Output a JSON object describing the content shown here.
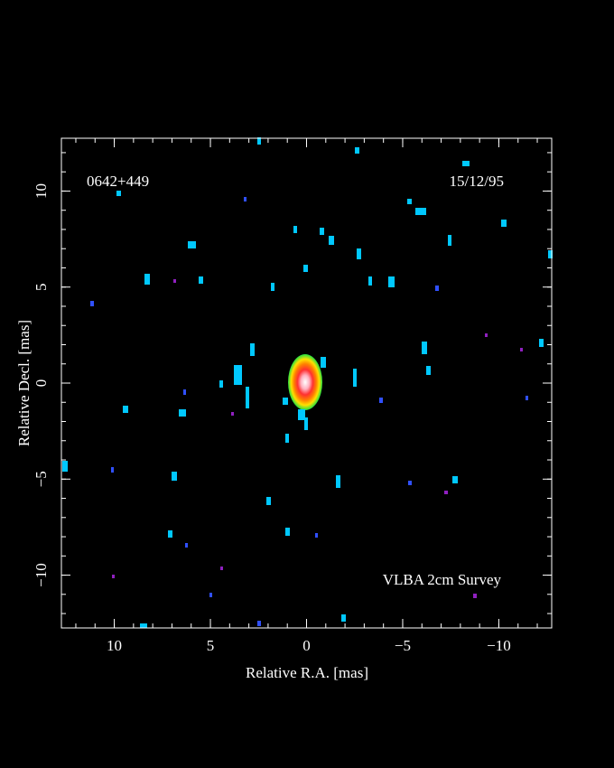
{
  "chart_data": {
    "type": "image",
    "source": "0642+449",
    "date": "15/12/95",
    "survey": "VLBA 2cm Survey",
    "x_label": "Relative R.A. [mas]",
    "y_label": "Relative Decl. [mas]",
    "xlim": [
      12.75,
      -12.75
    ],
    "ylim": [
      -12.75,
      12.75
    ],
    "xticks": [
      10,
      5,
      0,
      {
        "value": -5,
        "label": "−5"
      },
      {
        "value": -10,
        "label": "−10"
      }
    ],
    "yticks": [
      {
        "value": -10,
        "label": "−10"
      },
      {
        "value": -5,
        "label": "−5"
      },
      0,
      5,
      10
    ]
  }
}
